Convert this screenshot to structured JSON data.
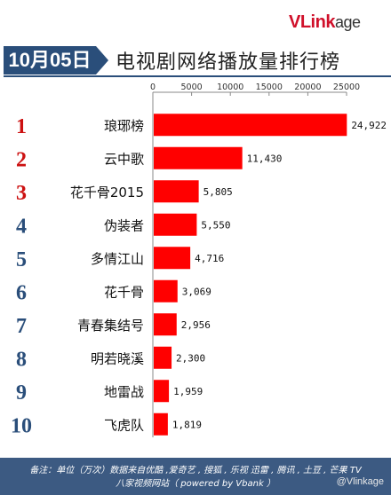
{
  "brand": {
    "logo_main": "VLink",
    "logo_tail": "age"
  },
  "header": {
    "date": "10月05日",
    "title": "电视剧网络播放量排行榜"
  },
  "chart_data": {
    "type": "bar",
    "orientation": "horizontal",
    "title": "电视剧网络播放量排行榜",
    "ranks": [
      "1",
      "2",
      "3",
      "4",
      "5",
      "6",
      "7",
      "8",
      "9",
      "10"
    ],
    "categories": [
      "琅琊榜",
      "云中歌",
      "花千骨2015",
      "伪装者",
      "多情江山",
      "花千骨",
      "青春集结号",
      "明若晓溪",
      "地雷战",
      "飞虎队"
    ],
    "values": [
      24922,
      11430,
      5805,
      5550,
      4716,
      3069,
      2956,
      2300,
      1959,
      1819
    ],
    "value_labels": [
      "24,922",
      "11,430",
      "5,805",
      "5,550",
      "4,716",
      "3,069",
      "2,956",
      "2,300",
      "1,959",
      "1,819"
    ],
    "xlim": [
      0,
      25000
    ],
    "xticks": [
      0,
      5000,
      10000,
      15000,
      20000,
      25000
    ],
    "xtick_labels": [
      "0",
      "5000",
      "10000",
      "15000",
      "20000",
      "25000"
    ],
    "axis_position": "top",
    "grid": false,
    "bar_color": "#ff0000",
    "rank_colors": [
      "#cc1111",
      "#cc1111",
      "#cc1111",
      "#2a4e7a",
      "#2a4e7a",
      "#2a4e7a",
      "#2a4e7a",
      "#2a4e7a",
      "#2a4e7a",
      "#2a4e7a"
    ]
  },
  "footer": {
    "line1": "备注：单位（万次）数据来自优酷 ,爱奇艺 , 搜狐 , 乐视  迅雷 , 腾讯 , 土豆 , 芒果 TV",
    "line2": "八家视频网站（ powered by Vbank ）",
    "watermark": "@Vlinkage"
  }
}
